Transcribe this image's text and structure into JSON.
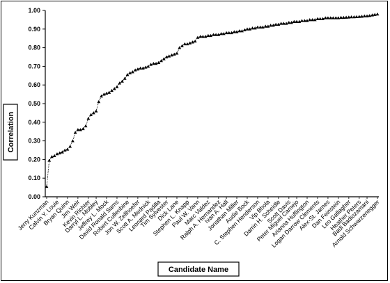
{
  "chart_data": {
    "type": "scatter",
    "xlabel": "Candidate Name",
    "ylabel": "Correlation",
    "ylim": [
      0,
      1.0
    ],
    "y_ticks": [
      "0.00",
      "0.10",
      "0.20",
      "0.30",
      "0.40",
      "0.50",
      "0.60",
      "0.70",
      "0.80",
      "0.90",
      "1.00"
    ],
    "grid": false,
    "legend": "none",
    "line_style": "dotted",
    "marker": "triangle",
    "candidate_labels": [
      {
        "index": 1,
        "name": "Jerry Kunzman"
      },
      {
        "index": 5,
        "name": "Calvin Y. Louie"
      },
      {
        "index": 9,
        "name": "Bryan Quinn"
      },
      {
        "index": 13,
        "name": "Jim Weir"
      },
      {
        "index": 17,
        "name": "Kevin Richter"
      },
      {
        "index": 20,
        "name": "Darryl L. Mobley"
      },
      {
        "index": 24,
        "name": "Jeffrey L. Mock"
      },
      {
        "index": 28,
        "name": "David Ronald Sams"
      },
      {
        "index": 32,
        "name": "Robert Cullenbine"
      },
      {
        "index": 36,
        "name": "Jon W. Zellhoefer"
      },
      {
        "index": 40,
        "name": "Scott A. Mednick"
      },
      {
        "index": 44,
        "name": "Leonard Padilla"
      },
      {
        "index": 47,
        "name": "Tim Sylvester"
      },
      {
        "index": 51,
        "name": "Dick Lane"
      },
      {
        "index": 55,
        "name": "Stephen L. Knapp"
      },
      {
        "index": 59,
        "name": "Paul W. Vann"
      },
      {
        "index": 63,
        "name": "Marc Valdez"
      },
      {
        "index": 67,
        "name": "Ralph A. Hernandez"
      },
      {
        "index": 70,
        "name": "Ivan A. Hall"
      },
      {
        "index": 74,
        "name": "Jonathan Miller"
      },
      {
        "index": 78,
        "name": "Audie Bock"
      },
      {
        "index": 82,
        "name": "C. Stephen Henderson"
      },
      {
        "index": 86,
        "name": "Vip Bhola"
      },
      {
        "index": 90,
        "name": "Darrin H. Scheidle"
      },
      {
        "index": 94,
        "name": "Scott Davis"
      },
      {
        "index": 97,
        "name": "Peter Miguel Camejo"
      },
      {
        "index": 101,
        "name": "Arianna Huffington"
      },
      {
        "index": 105,
        "name": "Logan Darrow Clements"
      },
      {
        "index": 109,
        "name": "Alex-St. James"
      },
      {
        "index": 113,
        "name": "Dan Feinstein"
      },
      {
        "index": 117,
        "name": "Leo Gallagher"
      },
      {
        "index": 121,
        "name": "Heather Peters"
      },
      {
        "index": 124,
        "name": "Badi Badiozamani"
      },
      {
        "index": 128,
        "name": "Arnold Schwarzenegger"
      }
    ],
    "values": [
      0.055,
      0.195,
      0.215,
      0.22,
      0.23,
      0.235,
      0.24,
      0.25,
      0.255,
      0.27,
      0.3,
      0.345,
      0.36,
      0.36,
      0.365,
      0.38,
      0.42,
      0.44,
      0.45,
      0.46,
      0.51,
      0.54,
      0.55,
      0.555,
      0.56,
      0.57,
      0.58,
      0.59,
      0.61,
      0.62,
      0.635,
      0.655,
      0.665,
      0.67,
      0.68,
      0.685,
      0.69,
      0.69,
      0.695,
      0.7,
      0.71,
      0.715,
      0.715,
      0.72,
      0.73,
      0.74,
      0.75,
      0.755,
      0.76,
      0.765,
      0.77,
      0.8,
      0.81,
      0.82,
      0.82,
      0.825,
      0.83,
      0.835,
      0.855,
      0.86,
      0.86,
      0.86,
      0.865,
      0.865,
      0.87,
      0.87,
      0.87,
      0.875,
      0.875,
      0.88,
      0.88,
      0.88,
      0.885,
      0.885,
      0.89,
      0.89,
      0.895,
      0.9,
      0.9,
      0.905,
      0.905,
      0.91,
      0.91,
      0.91,
      0.915,
      0.915,
      0.92,
      0.92,
      0.925,
      0.925,
      0.93,
      0.93,
      0.93,
      0.935,
      0.935,
      0.94,
      0.94,
      0.94,
      0.945,
      0.945,
      0.945,
      0.95,
      0.95,
      0.95,
      0.955,
      0.955,
      0.955,
      0.96,
      0.96,
      0.96,
      0.96,
      0.96,
      0.96,
      0.962,
      0.962,
      0.963,
      0.964,
      0.965,
      0.965,
      0.966,
      0.967,
      0.968,
      0.97,
      0.97,
      0.972,
      0.975,
      0.978,
      0.98
    ]
  }
}
